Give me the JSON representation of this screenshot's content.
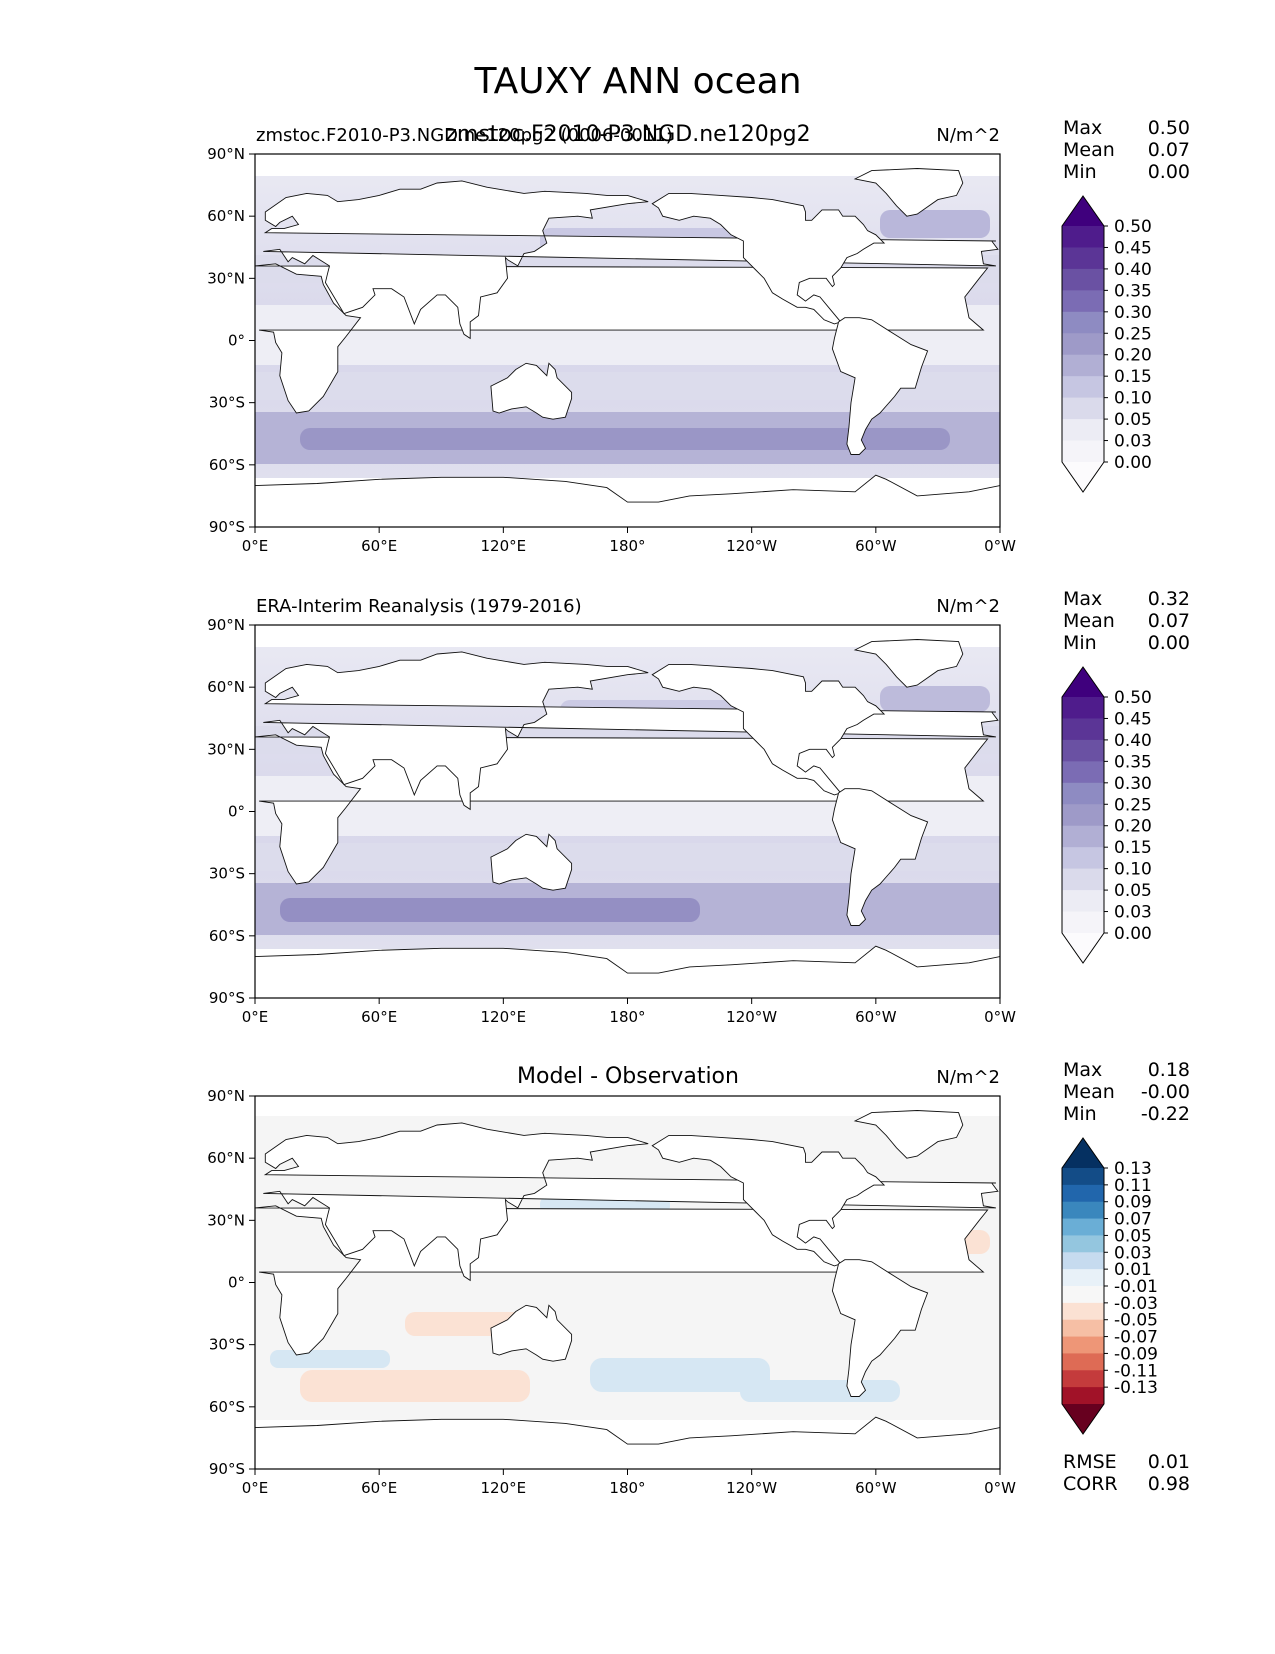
{
  "chart_data": {
    "type": "map-contour",
    "title": "TAUXY ANN ocean",
    "x_ticks": [
      "0°E",
      "60°E",
      "120°E",
      "180°",
      "120°W",
      "60°W",
      "0°W"
    ],
    "y_ticks": [
      "90°N",
      "60°N",
      "30°N",
      "0°",
      "30°S",
      "60°S",
      "90°S"
    ],
    "panels": [
      {
        "left_title": "zmstoc.F2010-P3.NGD.ne120pg2 (0006-0011)",
        "center_title": "zmstoc.F2010-P3.NGD.ne120pg2",
        "units": "N/m^2",
        "stats": [
          {
            "label": "Max",
            "value": "0.50"
          },
          {
            "label": "Mean",
            "value": "0.07"
          },
          {
            "label": "Min",
            "value": "0.00"
          }
        ],
        "colorbar": {
          "levels": [
            "0.50",
            "0.45",
            "0.40",
            "0.35",
            "0.30",
            "0.25",
            "0.20",
            "0.15",
            "0.10",
            "0.05",
            "0.03",
            "0.00"
          ],
          "colors": [
            "#3f007d",
            "#4f1c8c",
            "#5b3596",
            "#6a51a3",
            "#7b6cb4",
            "#8e8bc2",
            "#9e9ac8",
            "#b1afd4",
            "#c6c6e2",
            "#dadaeb",
            "#ececf4",
            "#f5f4f9",
            "#fcfbfd"
          ]
        },
        "extra_stats": []
      },
      {
        "left_title": "ERA-Interim Reanalysis (1979-2016)",
        "center_title": "",
        "units": "N/m^2",
        "stats": [
          {
            "label": "Max",
            "value": "0.32"
          },
          {
            "label": "Mean",
            "value": "0.07"
          },
          {
            "label": "Min",
            "value": "0.00"
          }
        ],
        "colorbar": {
          "levels": [
            "0.50",
            "0.45",
            "0.40",
            "0.35",
            "0.30",
            "0.25",
            "0.20",
            "0.15",
            "0.10",
            "0.05",
            "0.03",
            "0.00"
          ],
          "colors": [
            "#3f007d",
            "#4f1c8c",
            "#5b3596",
            "#6a51a3",
            "#7b6cb4",
            "#8e8bc2",
            "#9e9ac8",
            "#b1afd4",
            "#c6c6e2",
            "#dadaeb",
            "#ececf4",
            "#f5f4f9",
            "#fcfbfd"
          ]
        },
        "extra_stats": []
      },
      {
        "left_title": "",
        "center_title": "Model - Observation",
        "units": "N/m^2",
        "stats": [
          {
            "label": "Max",
            "value": "0.18"
          },
          {
            "label": "Mean",
            "value": "-0.00"
          },
          {
            "label": "Min",
            "value": "-0.22"
          }
        ],
        "colorbar": {
          "levels": [
            "0.13",
            "0.11",
            "0.09",
            "0.07",
            "0.05",
            "0.03",
            "0.01",
            "-0.01",
            "-0.03",
            "-0.05",
            "-0.07",
            "-0.09",
            "-0.11",
            "-0.13"
          ],
          "colors": [
            "#053061",
            "#134c87",
            "#2166ac",
            "#3a87bd",
            "#6aaed6",
            "#94c6df",
            "#c6dbef",
            "#e8f1f8",
            "#f7f7f7",
            "#fbe1d3",
            "#f6bfa5",
            "#ee9677",
            "#de6b55",
            "#c43b3c",
            "#a11228",
            "#67001f"
          ]
        },
        "extra_stats": [
          {
            "label": "RMSE",
            "value": "0.01"
          },
          {
            "label": "CORR",
            "value": "0.98"
          }
        ]
      }
    ]
  },
  "colors": {
    "land": "#ffffff",
    "coast": "#111111",
    "ocean_seq_low": "#e6e6f1",
    "ocean_seq_mid": "#c6c6e2",
    "ocean_seq_high": "#9e9ac8",
    "diff_neutral": "#f5f5f5",
    "diff_pos": "#d6e7f3",
    "diff_neg": "#fbe2d4"
  }
}
